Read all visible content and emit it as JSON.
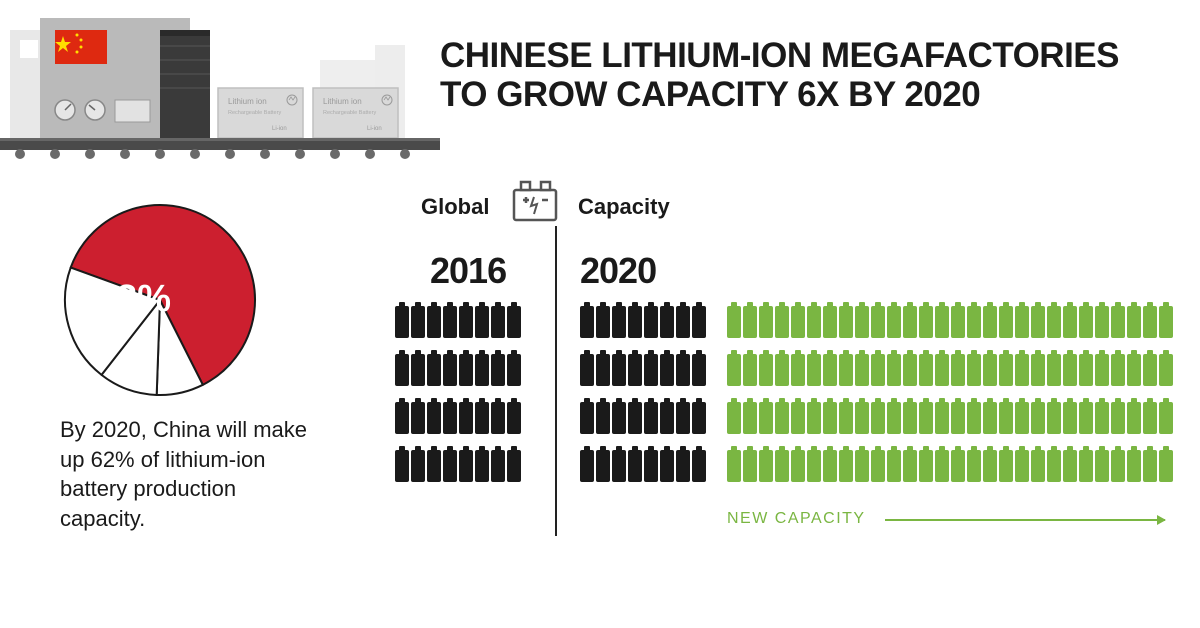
{
  "header": {
    "title_line1": "CHINESE LITHIUM-ION MEGAFACTORIES",
    "title_line2": "TO GROW CAPACITY 6X BY 2020",
    "title_color": "#1a1a1a",
    "title_fontsize": 35
  },
  "factory": {
    "bg_building_color": "#e6e6e6",
    "front_building_color": "#b3b3b3",
    "door_color": "#3a3a3a",
    "conveyor_color": "#4a4a4a",
    "wheel_color": "#5c5c5c",
    "battery_box_fill": "#d9d9d9",
    "battery_box_stroke": "#bfbfbf",
    "flag_red": "#de2910",
    "flag_yellow": "#ffde00",
    "battery_box_label1": "Lithium ion",
    "battery_box_label2": "Rechargeable Battery",
    "battery_box_label3": "Li-ion"
  },
  "pie": {
    "type": "pie",
    "percent_label": "62%",
    "slices": [
      {
        "value": 62,
        "fill": "#cc1f2f"
      },
      {
        "value": 8,
        "fill": "#ffffff"
      },
      {
        "value": 10,
        "fill": "#ffffff"
      },
      {
        "value": 20,
        "fill": "#ffffff"
      }
    ],
    "stroke_color": "#1a1a1a",
    "stroke_width": 2,
    "diameter": 190,
    "caption": "By 2020, China will make up 62% of lithium-ion battery production capacity.",
    "caption_fontsize": 22
  },
  "capacity": {
    "section_label_left": "Global",
    "section_label_right": "Capacity",
    "year_left": "2016",
    "year_right": "2020",
    "rows": 4,
    "cols_2016": 8,
    "cols_2020_black": 8,
    "cols_2020_green": 28,
    "black": "#1a1a1a",
    "green": "#7ab642",
    "new_capacity_label": "NEW CAPACITY",
    "year_fontsize": 36,
    "label_fontsize": 22,
    "battery_icon_width": 14,
    "battery_icon_height": 36
  },
  "background_color": "#ffffff"
}
